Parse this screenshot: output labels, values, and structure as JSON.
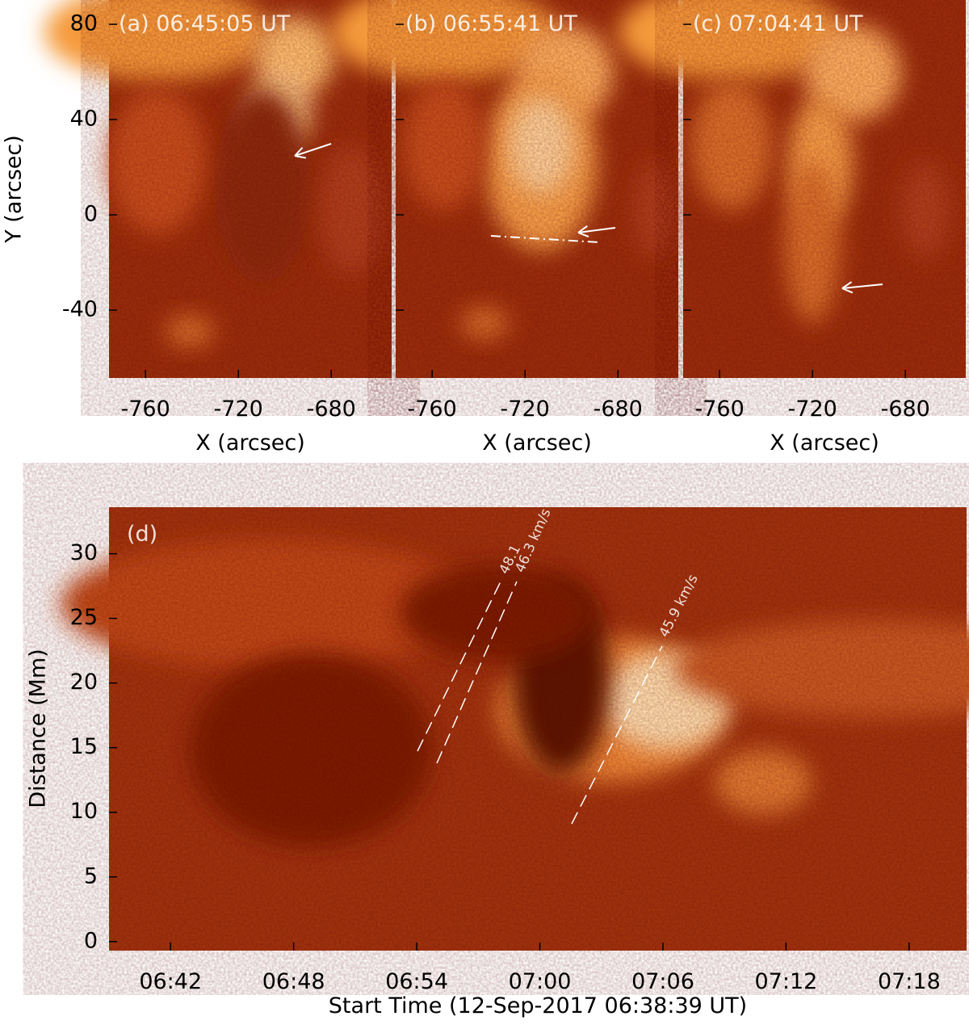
{
  "top": {
    "panels": [
      {
        "label": "(a) 06:45:05 UT"
      },
      {
        "label": "(b) 06:55:41 UT"
      },
      {
        "label": "(c) 07:04:41 UT"
      }
    ],
    "xlabel": "X (arcsec)",
    "ylabel": "Y (arcsec)",
    "xlim": [
      -775.7,
      -654
    ],
    "ylim": [
      -68.5,
      90.2
    ],
    "xticks": [
      -760,
      -720,
      -680
    ],
    "yticks": [
      -40,
      0,
      40,
      80
    ]
  },
  "bottom": {
    "label": "(d)",
    "xlabel": "Start Time (12-Sep-2017 06:38:39 UT)",
    "ylabel": "Distance (Mm)",
    "xlim": [
      399.0,
      440.8
    ],
    "ylim": [
      -0.7,
      33.6
    ],
    "xticks": [
      {
        "value": 402,
        "label": "06:42"
      },
      {
        "value": 408,
        "label": "06:48"
      },
      {
        "value": 414,
        "label": "06:54"
      },
      {
        "value": 420,
        "label": "07:00"
      },
      {
        "value": 426,
        "label": "07:06"
      },
      {
        "value": 432,
        "label": "07:12"
      },
      {
        "value": 438,
        "label": "07:18"
      }
    ],
    "yticks": [
      0,
      5,
      10,
      15,
      20,
      25,
      30
    ],
    "speeds": [
      "48.1",
      "46.3 km/s",
      "45.9 km/s"
    ]
  }
}
